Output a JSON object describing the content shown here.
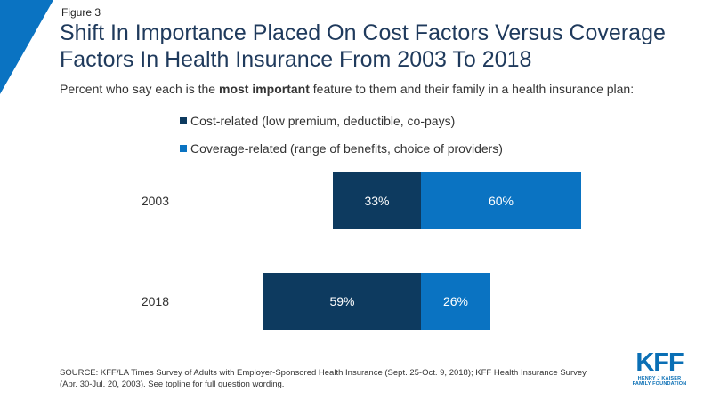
{
  "figure_label": "Figure 3",
  "title": "Shift In Importance Placed On Cost Factors Versus Coverage Factors In Health Insurance From 2003 To 2018",
  "subtitle": {
    "before": "Percent who say each is the ",
    "bold": "most important",
    "after": " feature to them and their family in a health insurance plan:"
  },
  "colors": {
    "cost": "#0d3a5f",
    "coverage": "#0a73c2",
    "accent": "#0a73c2",
    "bar_text": "#ffffff"
  },
  "chart_data": {
    "type": "bar",
    "orientation": "horizontal",
    "stacked": "diverging",
    "categories": [
      "2003",
      "2018"
    ],
    "series": [
      {
        "name": "Cost-related (low premium, deductible, co-pays)",
        "values": [
          33,
          59
        ],
        "labels": [
          "33%",
          "59%"
        ]
      },
      {
        "name": "Coverage-related (range of benefits, choice of providers)",
        "values": [
          60,
          26
        ],
        "labels": [
          "60%",
          "26%"
        ]
      }
    ],
    "legend_position": "top",
    "grid": false
  },
  "source": "SOURCE: KFF/LA Times Survey  of Adults with Employer-Sponsored Health Insurance (Sept. 25-Oct. 9, 2018); KFF Health Insurance Survey (Apr. 30-Jul. 20, 2003). See topline for full question wording.",
  "logo": {
    "mark": "KFF",
    "line1": "HENRY J KAISER",
    "line2": "FAMILY FOUNDATION"
  }
}
